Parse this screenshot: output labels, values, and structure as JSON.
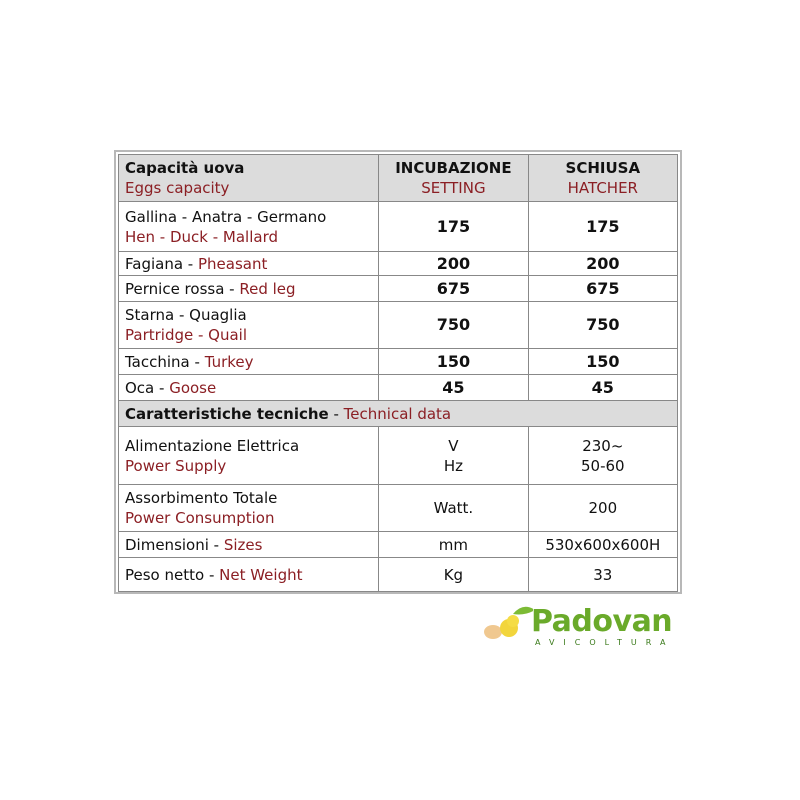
{
  "header": {
    "col1_it": "Capacità uova",
    "col1_en": "Eggs capacity",
    "col2_it": "INCUBAZIONE",
    "col2_en": "SETTING",
    "col3_it": "SCHIUSA",
    "col3_en": "HATCHER"
  },
  "capacity_rows": [
    {
      "it": "Gallina - Anatra - Germano",
      "en": "Hen - Duck - Mallard",
      "two_line": true,
      "setting": "175",
      "hatcher": "175"
    },
    {
      "it": "Fagiana - ",
      "en": "Pheasant",
      "setting": "200",
      "hatcher": "200"
    },
    {
      "it": "Pernice rossa - ",
      "en": "Red leg",
      "setting": "675",
      "hatcher": "675"
    },
    {
      "it": "Starna - Quaglia",
      "en": "Partridge - Quail",
      "two_line": true,
      "setting": "750",
      "hatcher": "750"
    },
    {
      "it": "Tacchina - ",
      "en": "Turkey",
      "setting": "150",
      "hatcher": "150"
    },
    {
      "it": "Oca - ",
      "en": "Goose",
      "setting": "45",
      "hatcher": "45"
    }
  ],
  "tech_header": {
    "it": "Caratteristiche tecniche",
    "sep": " - ",
    "en": "Technical data"
  },
  "tech_rows": [
    {
      "it": "Alimentazione Elettrica",
      "en": "Power Supply",
      "unit": [
        "V",
        "Hz"
      ],
      "value": [
        "230~",
        "50-60"
      ]
    },
    {
      "it": "Assorbimento Totale",
      "en": "Power Consumption",
      "unit": "Watt.",
      "value": "200"
    },
    {
      "it": "Dimensioni - ",
      "en": "Sizes",
      "unit": "mm",
      "value": "530x600x600H"
    },
    {
      "it": "Peso netto - ",
      "en": "Net Weight",
      "unit": "Kg",
      "value": "33"
    }
  ],
  "logo": {
    "name": "Padovan",
    "tagline": "AVICOLTURA",
    "colors": {
      "green": "#6aaa2a",
      "chick": "#f2d53c"
    }
  },
  "colors": {
    "english_text": "#8b1f24",
    "header_bg": "#dcdcdc"
  }
}
